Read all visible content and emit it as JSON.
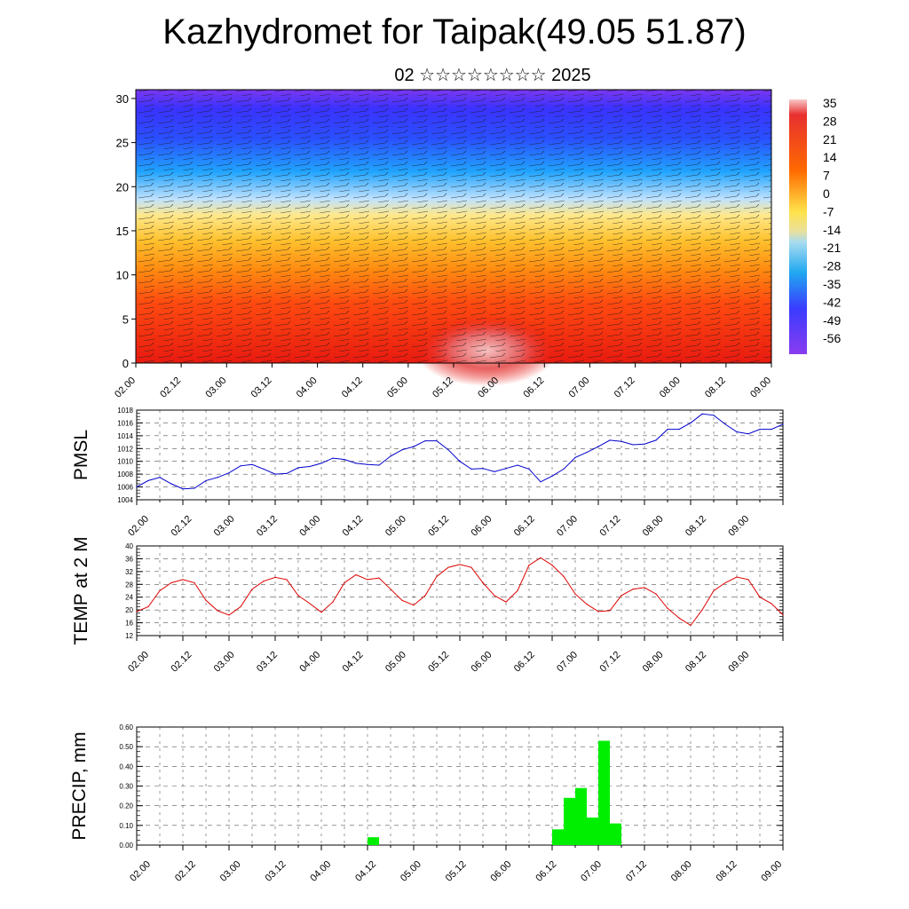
{
  "title": "Kazhydromet for Taipak(49.05 51.87)",
  "subtitle": "02 ☆☆☆☆☆☆☆☆ 2025",
  "x_ticks": [
    "02.00",
    "02.12",
    "03.00",
    "03.12",
    "04.00",
    "04.12",
    "05.00",
    "05.12",
    "06.00",
    "06.12",
    "07.00",
    "07.12",
    "08.00",
    "08.12",
    "09.00"
  ],
  "colors": {
    "pmsl_line": "#0000cc",
    "temp_line": "#dd0000",
    "precip_bar": "#00ee00"
  },
  "chart_data": [
    {
      "type": "heatmap",
      "name": "cross-section",
      "y_ticks": [
        "0",
        "5",
        "10",
        "15",
        "20",
        "25",
        "30"
      ],
      "ylim": [
        0,
        31
      ],
      "colorbar_labels": [
        "35",
        "28",
        "21",
        "14",
        "7",
        "0",
        "-7",
        "-14",
        "-21",
        "-28",
        "-35",
        "-42",
        "-49",
        "-56"
      ],
      "colorbar_range": [
        -60,
        40
      ]
    },
    {
      "type": "line",
      "ylabel": "PMSL",
      "ylim": [
        1004,
        1018
      ],
      "y_ticks": [
        "1004",
        "1006",
        "1008",
        "1010",
        "1012",
        "1014",
        "1016",
        "1018"
      ],
      "x": [
        0,
        3,
        6,
        9,
        12,
        15,
        18,
        21,
        24,
        27,
        30,
        33,
        36,
        39,
        42,
        45,
        48,
        51,
        54,
        57,
        60,
        63,
        66,
        69,
        72,
        75,
        78,
        81,
        84,
        87,
        90,
        93,
        96,
        99,
        102,
        105,
        108,
        111,
        114,
        117,
        120,
        123,
        126,
        129,
        132,
        135,
        138,
        141,
        144,
        147,
        150,
        153,
        156,
        159,
        162,
        165,
        168
      ],
      "values": [
        1006.0,
        1007.0,
        1007.5,
        1006.5,
        1005.7,
        1005.8,
        1007.0,
        1007.5,
        1008.2,
        1009.3,
        1009.5,
        1008.8,
        1008.0,
        1008.1,
        1009.0,
        1009.2,
        1009.7,
        1010.5,
        1010.3,
        1009.7,
        1009.5,
        1009.4,
        1010.8,
        1011.8,
        1012.3,
        1013.2,
        1013.2,
        1011.8,
        1010.0,
        1008.8,
        1008.9,
        1008.4,
        1008.9,
        1009.4,
        1008.8,
        1006.8,
        1007.7,
        1008.8,
        1010.6,
        1011.4,
        1012.3,
        1013.3,
        1013.1,
        1012.6,
        1012.7,
        1013.3,
        1015.0,
        1015.0,
        1016.0,
        1017.4,
        1017.2,
        1015.8,
        1014.6,
        1014.3,
        1015.0,
        1015.0,
        1015.8
      ]
    },
    {
      "type": "line",
      "ylabel": "TEMP at 2 M",
      "ylim": [
        12,
        40
      ],
      "y_ticks": [
        "12",
        "16",
        "20",
        "24",
        "28",
        "32",
        "36",
        "40"
      ],
      "x": [
        0,
        3,
        6,
        9,
        12,
        15,
        18,
        21,
        24,
        27,
        30,
        33,
        36,
        39,
        42,
        45,
        48,
        51,
        54,
        57,
        60,
        63,
        66,
        69,
        72,
        75,
        78,
        81,
        84,
        87,
        90,
        93,
        96,
        99,
        102,
        105,
        108,
        111,
        114,
        117,
        120,
        123,
        126,
        129,
        132,
        135,
        138,
        141,
        144,
        147,
        150,
        153,
        156,
        159,
        162,
        165,
        168
      ],
      "values": [
        19.5,
        21.0,
        26.0,
        28.5,
        29.5,
        28.5,
        23.0,
        19.8,
        18.4,
        21.0,
        26.5,
        29.0,
        30.2,
        29.5,
        24.5,
        22.0,
        19.3,
        22.5,
        28.5,
        31.0,
        29.5,
        30.0,
        26.5,
        23.0,
        21.5,
        24.5,
        30.5,
        33.3,
        34.2,
        33.3,
        28.5,
        24.5,
        22.5,
        26.0,
        34.0,
        36.3,
        34.0,
        30.5,
        25.0,
        21.8,
        19.5,
        19.8,
        24.5,
        26.5,
        27.0,
        25.0,
        20.5,
        17.5,
        15.2,
        20.0,
        26.0,
        28.5,
        30.3,
        29.5,
        24.0,
        22.0,
        18.5
      ]
    },
    {
      "type": "bar",
      "ylabel": "PRECIP, mm",
      "ylim": [
        0,
        0.6
      ],
      "y_ticks": [
        "0.00",
        "0.10",
        "0.20",
        "0.30",
        "0.40",
        "0.50",
        "0.60"
      ],
      "bar_width_hours": 3,
      "x": [
        60,
        108,
        111,
        114,
        117,
        120,
        123
      ],
      "values": [
        0.04,
        0.08,
        0.24,
        0.29,
        0.14,
        0.53,
        0.11
      ]
    }
  ]
}
